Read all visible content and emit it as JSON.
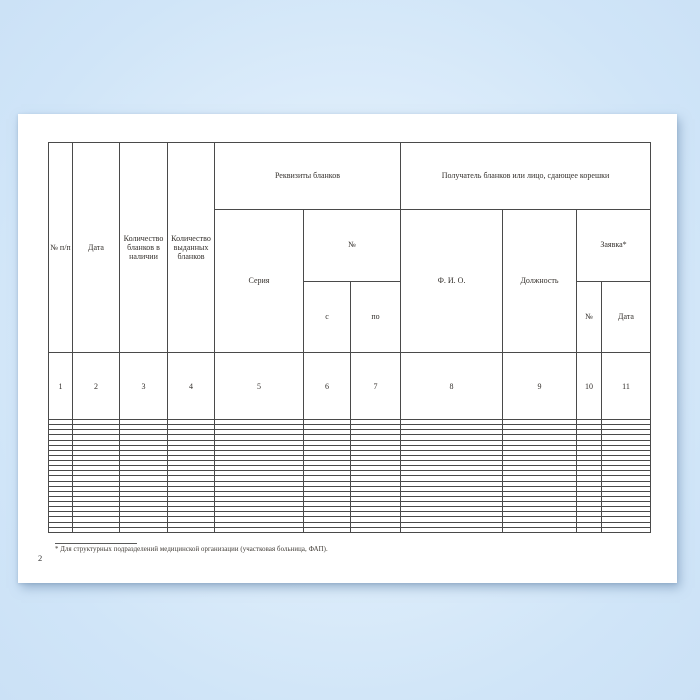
{
  "document": {
    "page_number": "2",
    "footnote": "* Для структурных подразделений медицинской организации (участковая больница, ФАП)."
  },
  "table": {
    "group_headers": {
      "requisites": "Реквизиты бланков",
      "recipient": "Получатель бланков или лицо, сдающее корешки"
    },
    "sub_headers": {
      "number_group": "№",
      "request": "Заявка*"
    },
    "columns": [
      {
        "label": "№ п/п",
        "num": "1"
      },
      {
        "label": "Дата",
        "num": "2"
      },
      {
        "label": "Количество бланков в наличии",
        "num": "3"
      },
      {
        "label": "Количество выданных бланков",
        "num": "4"
      },
      {
        "label": "Серия",
        "num": "5"
      },
      {
        "label": "с",
        "num": "6"
      },
      {
        "label": "по",
        "num": "7"
      },
      {
        "label": "Ф. И. О.",
        "num": "8"
      },
      {
        "label": "Должность",
        "num": "9"
      },
      {
        "label": "№",
        "num": "10"
      },
      {
        "label": "Дата",
        "num": "11"
      }
    ],
    "empty_body_rows": 22,
    "empty_cell_value": ""
  },
  "colors": {
    "background_edge": "#cbe1f6",
    "background_center": "#e9f3fd",
    "page": "#ffffff",
    "table_line": "#4a4a4a",
    "text": "#332f2b"
  }
}
